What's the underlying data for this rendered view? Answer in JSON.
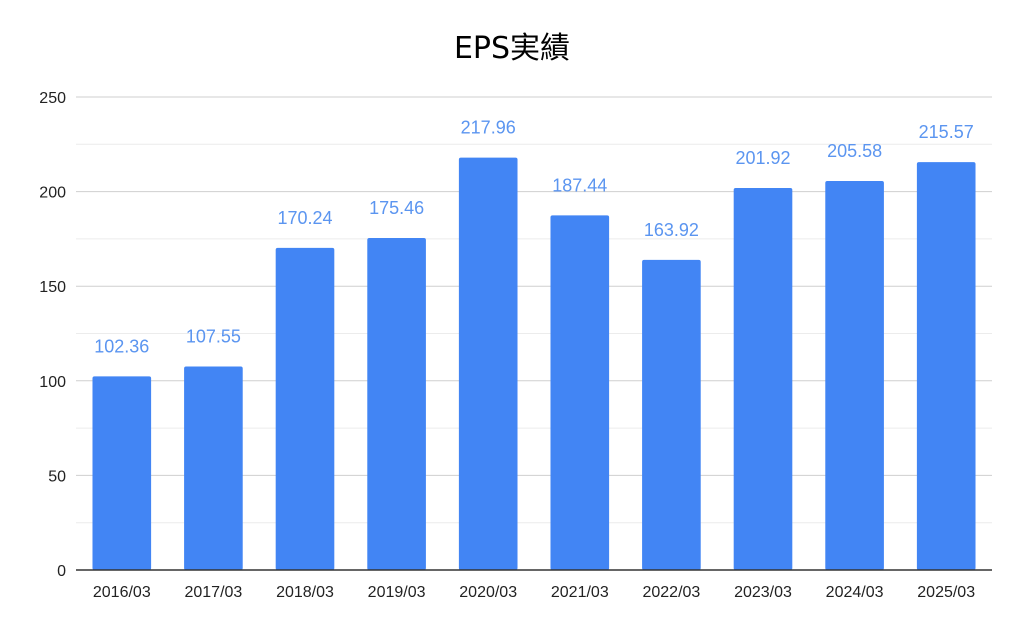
{
  "chart_data": {
    "type": "bar",
    "title": "EPS実績",
    "categories": [
      "2016/03",
      "2017/03",
      "2018/03",
      "2019/03",
      "2020/03",
      "2021/03",
      "2022/03",
      "2023/03",
      "2024/03",
      "2025/03"
    ],
    "values": [
      102.36,
      107.55,
      170.24,
      175.46,
      217.96,
      187.44,
      163.92,
      201.92,
      205.58,
      215.57
    ],
    "data_labels": [
      "102.36",
      "107.55",
      "170.24",
      "175.46",
      "217.96",
      "187.44",
      "163.92",
      "201.92",
      "205.58",
      "215.57"
    ],
    "ylim": [
      0,
      250
    ],
    "yticks": [
      0,
      50,
      100,
      150,
      200,
      250
    ],
    "ytick_labels": [
      "0",
      "50",
      "100",
      "150",
      "200",
      "250"
    ],
    "grid": true,
    "bar_color": "#4285f4",
    "label_color": "#5b95f0"
  }
}
